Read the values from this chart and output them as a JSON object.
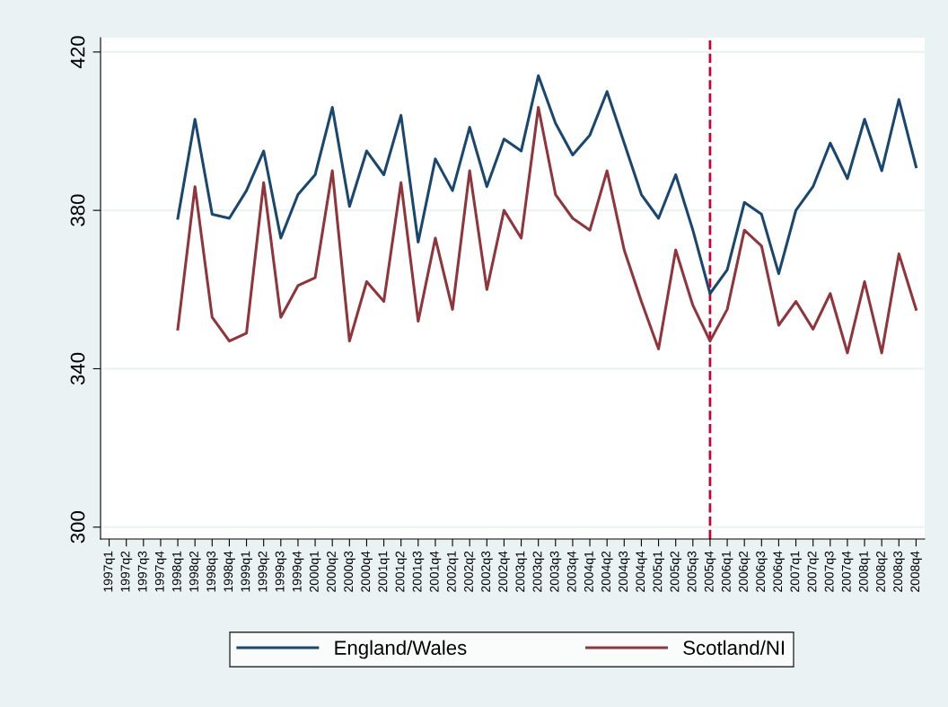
{
  "chart_data": {
    "type": "line",
    "categories": [
      "1997q1",
      "1997q2",
      "1997q3",
      "1997q4",
      "1998q1",
      "1998q2",
      "1998q3",
      "1998q4",
      "1999q1",
      "1999q2",
      "1999q3",
      "1999q4",
      "2000q1",
      "2000q2",
      "2000q3",
      "2000q4",
      "2001q1",
      "2001q2",
      "2001q3",
      "2001q4",
      "2002q1",
      "2002q2",
      "2002q3",
      "2002q4",
      "2003q1",
      "2003q2",
      "2003q3",
      "2003q4",
      "2004q1",
      "2004q2",
      "2004q3",
      "2004q4",
      "2005q1",
      "2005q2",
      "2005q3",
      "2005q4",
      "2006q1",
      "2006q2",
      "2006q3",
      "2006q4",
      "2007q1",
      "2007q2",
      "2007q3",
      "2007q4",
      "2008q1",
      "2008q2",
      "2008q3",
      "2008q4"
    ],
    "series": [
      {
        "name": "England/Wales",
        "color": "#1a476f",
        "values": [
          null,
          null,
          null,
          null,
          378,
          403,
          379,
          378,
          385,
          395,
          373,
          384,
          389,
          406,
          381,
          395,
          389,
          404,
          372,
          393,
          385,
          401,
          386,
          398,
          395,
          414,
          402,
          394,
          399,
          410,
          397,
          384,
          378,
          389,
          375,
          359,
          365,
          382,
          379,
          364,
          380,
          386,
          397,
          388,
          403,
          390,
          408,
          391
        ]
      },
      {
        "name": "Scotland/NI",
        "color": "#90353b",
        "values": [
          null,
          null,
          null,
          null,
          350,
          386,
          353,
          347,
          349,
          387,
          353,
          361,
          363,
          390,
          347,
          362,
          357,
          387,
          352,
          373,
          355,
          390,
          360,
          380,
          373,
          406,
          384,
          378,
          375,
          390,
          370,
          357,
          345,
          370,
          356,
          347,
          355,
          375,
          371,
          351,
          357,
          350,
          359,
          344,
          362,
          344,
          369,
          355
        ]
      }
    ],
    "ylim": [
      297,
      423.6
    ],
    "yticks": [
      300,
      340,
      380,
      420
    ],
    "ref_lines": [
      {
        "axis": "x",
        "value": "2005q4",
        "color": "#c10534",
        "line_style": "dashed"
      }
    ],
    "grid": "y",
    "legend": "bottom",
    "marker": "none",
    "line_style": "solid"
  }
}
